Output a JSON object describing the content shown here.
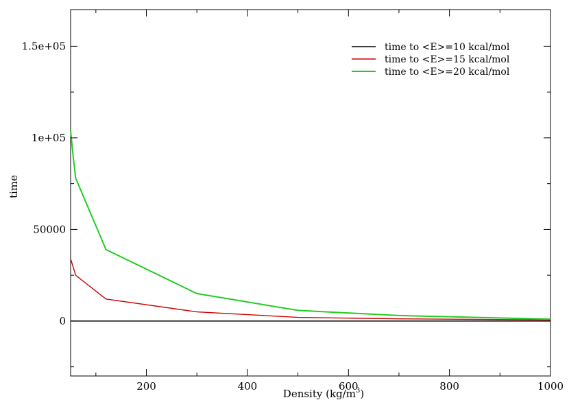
{
  "chart_data": {
    "type": "line",
    "title": "",
    "xlabel": "Density (kg/m",
    "xlabel_sup": "3",
    "xlabel_close": ")",
    "ylabel": "time",
    "xlim": [
      50,
      1000
    ],
    "ylim": [
      -30000,
      170000
    ],
    "xticks": [
      200,
      400,
      600,
      800,
      1000
    ],
    "yticks": [
      {
        "value": 0,
        "label": "0"
      },
      {
        "value": 50000,
        "label": "50000"
      },
      {
        "value": 100000,
        "label": "1e+05"
      },
      {
        "value": 150000,
        "label": "1.5e+05"
      }
    ],
    "legend_position": "top-right",
    "series": [
      {
        "name": "time to <E>=10 kcal/mol",
        "color": "#000000",
        "x": [
          50,
          60,
          120,
          300,
          500,
          700,
          1000
        ],
        "y": [
          0,
          0,
          0,
          0,
          0,
          0,
          0
        ]
      },
      {
        "name": "time to <E>=15 kcal/mol",
        "color": "#cc0000",
        "x": [
          50,
          60,
          120,
          300,
          500,
          700,
          1000
        ],
        "y": [
          34000,
          25000,
          12000,
          5000,
          2000,
          1200,
          600
        ]
      },
      {
        "name": "time to <E>=20 kcal/mol",
        "color": "#22cc22",
        "x": [
          50,
          55,
          60,
          120,
          300,
          500,
          700,
          1000
        ],
        "y": [
          104000,
          90000,
          78000,
          39000,
          15000,
          5800,
          3000,
          1000
        ]
      }
    ]
  }
}
